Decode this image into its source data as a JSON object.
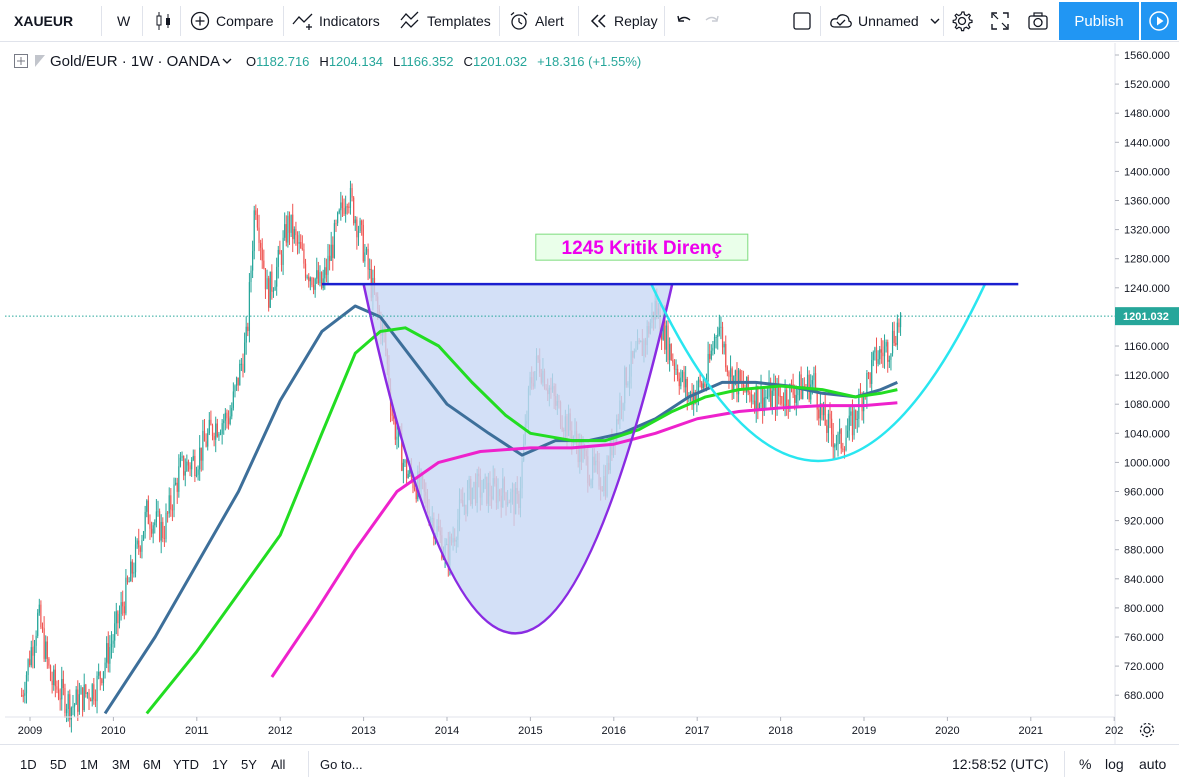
{
  "toolbar": {
    "symbol": "XAUEUR",
    "interval": "W",
    "compare_label": "Compare",
    "indicators_label": "Indicators",
    "templates_label": "Templates",
    "alert_label": "Alert",
    "replay_label": "Replay",
    "layout_name": "Unnamed",
    "publish_label": "Publish"
  },
  "legend": {
    "title": "Gold/EUR · 1W · OANDA",
    "open_label": "O",
    "open": "1182.716",
    "high_label": "H",
    "high": "1204.134",
    "low_label": "L",
    "low": "1166.352",
    "close_label": "C",
    "close": "1201.032",
    "change": "+18.316 (+1.55%)"
  },
  "annotation": {
    "text": "1245 Kritik Direnç",
    "color": "#ee00ee"
  },
  "price_axis": {
    "labels": [
      "1560.000",
      "1520.000",
      "1480.000",
      "1440.000",
      "1400.000",
      "1360.000",
      "1320.000",
      "1280.000",
      "1240.000",
      "1200.000",
      "1160.000",
      "1120.000",
      "1080.000",
      "1040.000",
      "1000.000",
      "960.000",
      "920.000",
      "880.000",
      "840.000",
      "800.000",
      "760.000",
      "720.000",
      "680.000"
    ],
    "current_price": "1201.032"
  },
  "time_axis": {
    "labels": [
      "2009",
      "2010",
      "2011",
      "2012",
      "2013",
      "2014",
      "2015",
      "2016",
      "2017",
      "2018",
      "2019",
      "2020",
      "2021",
      "202"
    ]
  },
  "bottombar": {
    "ranges": [
      "1D",
      "5D",
      "1M",
      "3M",
      "6M",
      "YTD",
      "1Y",
      "5Y",
      "All"
    ],
    "goto_label": "Go to...",
    "clock": "12:58:52 (UTC)",
    "percent_label": "%",
    "log_label": "log",
    "auto_label": "auto"
  },
  "chart_data": {
    "type": "candlestick",
    "instrument": "Gold/EUR",
    "timeframe": "1W",
    "x_range": [
      2009.0,
      2022.0
    ],
    "y_range": [
      655,
      1575
    ],
    "last_close": 1201.032,
    "colors": {
      "up": "#26a69a",
      "down": "#ef5350",
      "resistance": "#1a1fcf",
      "cup_fill": "#c8d8f5",
      "cup_line": "#8a2be2",
      "cyan_curve": "#29e6f0",
      "ma_blue": "#3d6f9a",
      "ma_green": "#22dd22",
      "ma_magenta": "#ee22cc"
    },
    "price_path": [
      [
        2008.9,
        680
      ],
      [
        2009.1,
        790
      ],
      [
        2009.25,
        700
      ],
      [
        2009.5,
        665
      ],
      [
        2009.8,
        695
      ],
      [
        2010.0,
        760
      ],
      [
        2010.2,
        840
      ],
      [
        2010.4,
        930
      ],
      [
        2010.6,
        905
      ],
      [
        2010.8,
        990
      ],
      [
        2011.0,
        1005
      ],
      [
        2011.2,
        1050
      ],
      [
        2011.4,
        1065
      ],
      [
        2011.6,
        1170
      ],
      [
        2011.7,
        1365
      ],
      [
        2011.85,
        1230
      ],
      [
        2012.0,
        1280
      ],
      [
        2012.1,
        1330
      ],
      [
        2012.3,
        1270
      ],
      [
        2012.5,
        1240
      ],
      [
        2012.7,
        1330
      ],
      [
        2012.8,
        1375
      ],
      [
        2012.95,
        1320
      ],
      [
        2013.1,
        1240
      ],
      [
        2013.25,
        1170
      ],
      [
        2013.35,
        1060
      ],
      [
        2013.5,
        990
      ],
      [
        2013.7,
        960
      ],
      [
        2013.9,
        900
      ],
      [
        2014.0,
        870
      ],
      [
        2014.15,
        930
      ],
      [
        2014.3,
        965
      ],
      [
        2014.5,
        960
      ],
      [
        2014.7,
        960
      ],
      [
        2014.85,
        940
      ],
      [
        2015.0,
        1110
      ],
      [
        2015.1,
        1140
      ],
      [
        2015.3,
        1080
      ],
      [
        2015.5,
        1040
      ],
      [
        2015.7,
        990
      ],
      [
        2015.9,
        975
      ],
      [
        2016.0,
        1040
      ],
      [
        2016.15,
        1120
      ],
      [
        2016.35,
        1160
      ],
      [
        2016.5,
        1215
      ],
      [
        2016.7,
        1145
      ],
      [
        2016.9,
        1090
      ],
      [
        2017.1,
        1110
      ],
      [
        2017.25,
        1195
      ],
      [
        2017.4,
        1120
      ],
      [
        2017.6,
        1095
      ],
      [
        2017.8,
        1090
      ],
      [
        2018.0,
        1090
      ],
      [
        2018.2,
        1100
      ],
      [
        2018.4,
        1110
      ],
      [
        2018.5,
        1060
      ],
      [
        2018.7,
        1025
      ],
      [
        2018.85,
        1050
      ],
      [
        2019.0,
        1100
      ],
      [
        2019.15,
        1145
      ],
      [
        2019.3,
        1160
      ],
      [
        2019.45,
        1201
      ]
    ],
    "resistance_line": {
      "value": 1245,
      "from": 2012.5,
      "to": 2020.85
    },
    "cup_curve": [
      [
        2013.0,
        1245
      ],
      [
        2014.82,
        765
      ],
      [
        2016.7,
        1245
      ]
    ],
    "cyan_curve": [
      [
        2016.45,
        1245
      ],
      [
        2018.45,
        1002
      ],
      [
        2020.45,
        1245
      ]
    ],
    "moving_averages": [
      {
        "color": "#3d6f9a",
        "points": [
          [
            2009.9,
            655
          ],
          [
            2010.5,
            760
          ],
          [
            2011.0,
            860
          ],
          [
            2011.5,
            960
          ],
          [
            2012.0,
            1085
          ],
          [
            2012.5,
            1180
          ],
          [
            2012.9,
            1215
          ],
          [
            2013.2,
            1200
          ],
          [
            2013.6,
            1140
          ],
          [
            2014.0,
            1080
          ],
          [
            2014.5,
            1040
          ],
          [
            2014.9,
            1010
          ],
          [
            2015.3,
            1030
          ],
          [
            2015.7,
            1030
          ],
          [
            2016.1,
            1040
          ],
          [
            2016.5,
            1060
          ],
          [
            2016.9,
            1090
          ],
          [
            2017.3,
            1110
          ],
          [
            2017.7,
            1110
          ],
          [
            2018.1,
            1105
          ],
          [
            2018.5,
            1095
          ],
          [
            2018.9,
            1090
          ],
          [
            2019.2,
            1100
          ],
          [
            2019.4,
            1110
          ]
        ]
      },
      {
        "color": "#22dd22",
        "points": [
          [
            2010.4,
            655
          ],
          [
            2011.0,
            740
          ],
          [
            2011.5,
            820
          ],
          [
            2012.0,
            900
          ],
          [
            2012.5,
            1040
          ],
          [
            2012.9,
            1150
          ],
          [
            2013.2,
            1180
          ],
          [
            2013.5,
            1185
          ],
          [
            2013.9,
            1160
          ],
          [
            2014.3,
            1110
          ],
          [
            2014.7,
            1065
          ],
          [
            2015.0,
            1040
          ],
          [
            2015.5,
            1030
          ],
          [
            2015.9,
            1030
          ],
          [
            2016.3,
            1045
          ],
          [
            2016.7,
            1070
          ],
          [
            2017.1,
            1090
          ],
          [
            2017.5,
            1100
          ],
          [
            2018.0,
            1105
          ],
          [
            2018.5,
            1100
          ],
          [
            2018.9,
            1090
          ],
          [
            2019.2,
            1095
          ],
          [
            2019.4,
            1100
          ]
        ]
      },
      {
        "color": "#ee22cc",
        "points": [
          [
            2011.9,
            705
          ],
          [
            2012.4,
            790
          ],
          [
            2012.9,
            880
          ],
          [
            2013.4,
            960
          ],
          [
            2013.9,
            1000
          ],
          [
            2014.4,
            1015
          ],
          [
            2015.0,
            1020
          ],
          [
            2015.5,
            1020
          ],
          [
            2016.0,
            1025
          ],
          [
            2016.5,
            1040
          ],
          [
            2017.0,
            1060
          ],
          [
            2017.5,
            1070
          ],
          [
            2018.0,
            1075
          ],
          [
            2018.5,
            1078
          ],
          [
            2019.0,
            1078
          ],
          [
            2019.4,
            1082
          ]
        ]
      }
    ]
  }
}
